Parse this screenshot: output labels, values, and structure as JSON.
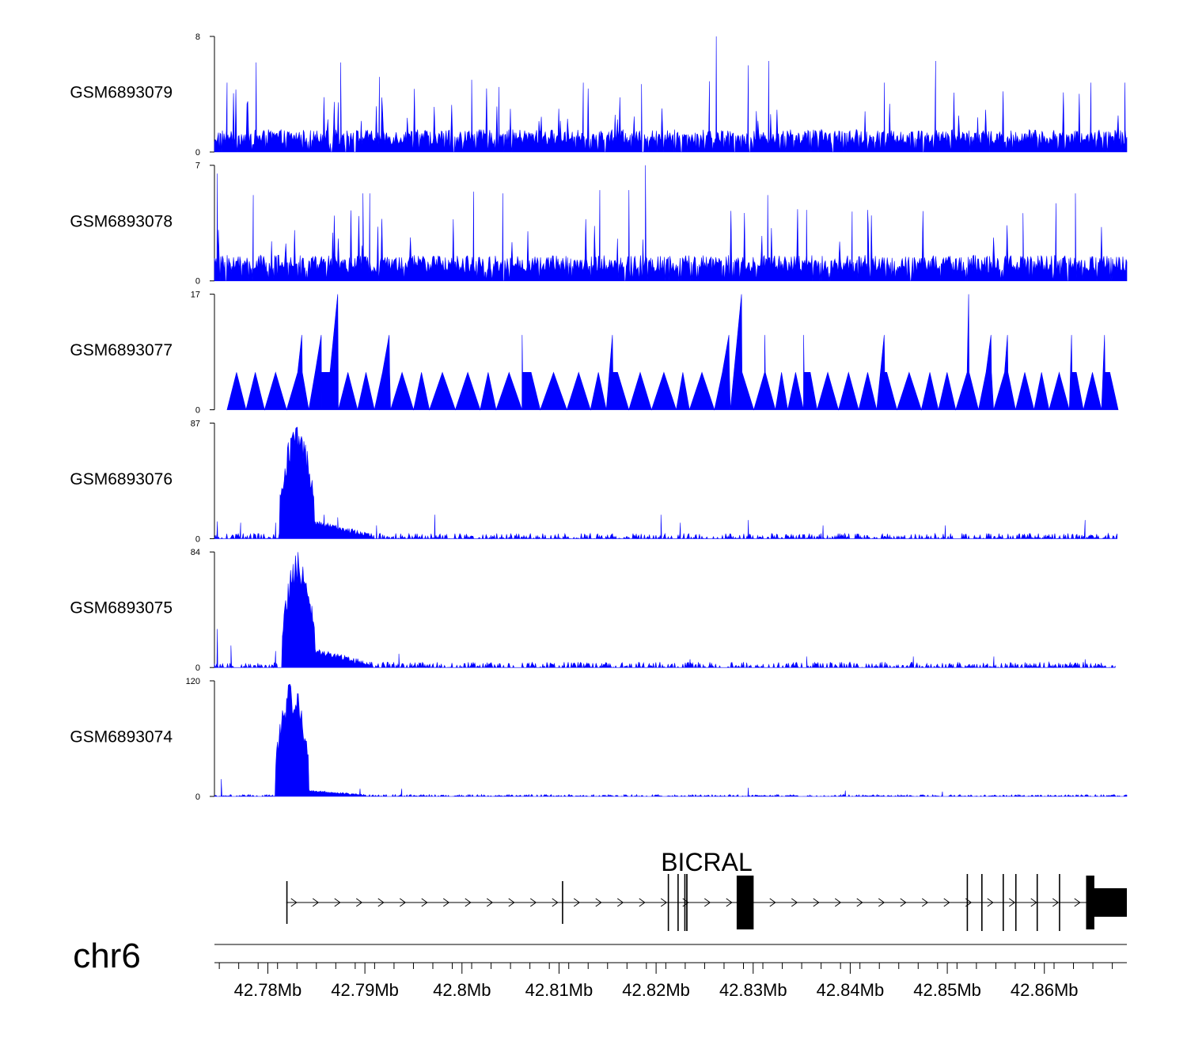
{
  "chart_data": {
    "type": "area",
    "title": "",
    "chromosome": "chr6",
    "xlim_mb": [
      42.7745,
      42.8685
    ],
    "xtick_values_mb": [
      42.78,
      42.79,
      42.8,
      42.81,
      42.82,
      42.83,
      42.84,
      42.85,
      42.86
    ],
    "xtick_labels": [
      "42.78Mb",
      "42.79Mb",
      "42.8Mb",
      "42.81Mb",
      "42.82Mb",
      "42.83Mb",
      "42.84Mb",
      "42.85Mb",
      "42.86Mb"
    ],
    "series_color": "#0000ff",
    "tracks": [
      {
        "name": "GSM6893079",
        "ymax_label": "8",
        "ymin_label": "0",
        "ymax": 8,
        "profile": "noise",
        "base": 1.2,
        "peaks": [
          [
            42.7758,
            4.8
          ],
          [
            42.7788,
            6.2
          ],
          [
            42.7875,
            6.2
          ],
          [
            42.7915,
            5.2
          ],
          [
            42.801,
            5.0
          ],
          [
            42.8038,
            4.5
          ],
          [
            42.8125,
            4.8
          ],
          [
            42.8185,
            4.7
          ],
          [
            42.8255,
            4.9
          ],
          [
            42.8262,
            8.0
          ],
          [
            42.8295,
            6.0
          ],
          [
            42.8316,
            6.3
          ],
          [
            42.8435,
            4.8
          ],
          [
            42.8488,
            6.3
          ],
          [
            42.8648,
            4.8
          ],
          [
            42.8683,
            4.8
          ]
        ]
      },
      {
        "name": "GSM6893078",
        "ymax_label": "7",
        "ymin_label": "0",
        "ymax": 7,
        "profile": "noise",
        "base": 1.2,
        "peaks": [
          [
            42.7748,
            6.5
          ],
          [
            42.7785,
            5.2
          ],
          [
            42.7898,
            5.3
          ],
          [
            42.7905,
            5.3
          ],
          [
            42.8012,
            5.4
          ],
          [
            42.8042,
            5.3
          ],
          [
            42.8142,
            5.5
          ],
          [
            42.8172,
            5.5
          ],
          [
            42.8189,
            7.0
          ],
          [
            42.8315,
            5.2
          ],
          [
            42.8355,
            4.3
          ],
          [
            42.8402,
            4.2
          ],
          [
            42.8418,
            4.3
          ],
          [
            42.8578,
            4.1
          ],
          [
            42.8612,
            4.7
          ],
          [
            42.8632,
            5.3
          ]
        ]
      },
      {
        "name": "GSM6893077",
        "ymax_label": "17",
        "ymin_label": "0",
        "ymax": 17,
        "profile": "sparse",
        "range": [
          42.7758,
          42.8678
        ],
        "base": 5.5,
        "peaks": [
          [
            42.7835,
            11.0
          ],
          [
            42.7855,
            11.0
          ],
          [
            42.7872,
            17.0
          ],
          [
            42.7925,
            11.0
          ],
          [
            42.8062,
            11.0
          ],
          [
            42.8155,
            11.0
          ],
          [
            42.8275,
            11.0
          ],
          [
            42.8288,
            17.0
          ],
          [
            42.8312,
            11.0
          ],
          [
            42.8352,
            11.0
          ],
          [
            42.8435,
            11.0
          ],
          [
            42.8522,
            17.0
          ],
          [
            42.8545,
            11.0
          ],
          [
            42.8562,
            11.0
          ],
          [
            42.8628,
            11.0
          ],
          [
            42.8662,
            11.0
          ]
        ]
      },
      {
        "name": "GSM6893076",
        "ymax_label": "87",
        "ymin_label": "0",
        "ymax": 87,
        "profile": "enriched",
        "range": [
          42.7745,
          42.8675
        ],
        "main_peak": {
          "start": 42.7812,
          "end": 42.7848,
          "height": 87
        },
        "base": 4.0,
        "peaks": [
          [
            42.7748,
            13
          ],
          [
            42.7772,
            12
          ],
          [
            42.7808,
            12
          ],
          [
            42.7858,
            18
          ],
          [
            42.7872,
            16
          ],
          [
            42.7912,
            10
          ],
          [
            42.7972,
            18
          ],
          [
            42.8205,
            18
          ],
          [
            42.8225,
            12
          ],
          [
            42.8295,
            14
          ],
          [
            42.8372,
            10
          ],
          [
            42.8498,
            10
          ],
          [
            42.8642,
            14
          ]
        ]
      },
      {
        "name": "GSM6893075",
        "ymax_label": "84",
        "ymin_label": "0",
        "ymax": 84,
        "profile": "enriched",
        "range": [
          42.7745,
          42.8673
        ],
        "main_peak": {
          "start": 42.7815,
          "end": 42.7848,
          "height": 84
        },
        "base": 4.0,
        "peaks": [
          [
            42.7748,
            28
          ],
          [
            42.7762,
            16
          ],
          [
            42.7808,
            12
          ],
          [
            42.7872,
            10
          ],
          [
            42.7935,
            10
          ],
          [
            42.8235,
            6
          ],
          [
            42.8355,
            8
          ],
          [
            42.8465,
            8
          ],
          [
            42.8548,
            8
          ],
          [
            42.8642,
            6
          ]
        ]
      },
      {
        "name": "GSM6893074",
        "ymax_label": "120",
        "ymin_label": "0",
        "ymax": 120,
        "profile": "enriched",
        "range": [
          42.7745,
          42.8685
        ],
        "main_peak": {
          "start": 42.7808,
          "end": 42.7842,
          "height": 120
        },
        "base": 2.0,
        "peaks": [
          [
            42.7752,
            18
          ],
          [
            42.7895,
            8
          ],
          [
            42.7938,
            8
          ],
          [
            42.8295,
            9
          ],
          [
            42.8395,
            6
          ],
          [
            42.8495,
            5
          ]
        ]
      }
    ],
    "gene": {
      "name": "BICRAL",
      "strand": "+",
      "start": 42.7819,
      "end": 42.8685,
      "exons": [
        [
          42.7819,
          42.78198
        ],
        [
          42.8103,
          42.81038
        ],
        [
          42.8212,
          42.82133
        ],
        [
          42.8222,
          42.82228
        ],
        [
          42.8229,
          42.82296
        ],
        [
          42.8231,
          42.82324
        ],
        [
          42.8283,
          42.83005
        ],
        [
          42.852,
          42.85208
        ],
        [
          42.8535,
          42.85358
        ],
        [
          42.8557,
          42.85578
        ],
        [
          42.857,
          42.85708
        ],
        [
          42.8592,
          42.85928
        ],
        [
          42.8615,
          42.86158
        ],
        [
          42.8643,
          42.86515
        ],
        [
          42.8651,
          42.8685
        ]
      ]
    }
  }
}
